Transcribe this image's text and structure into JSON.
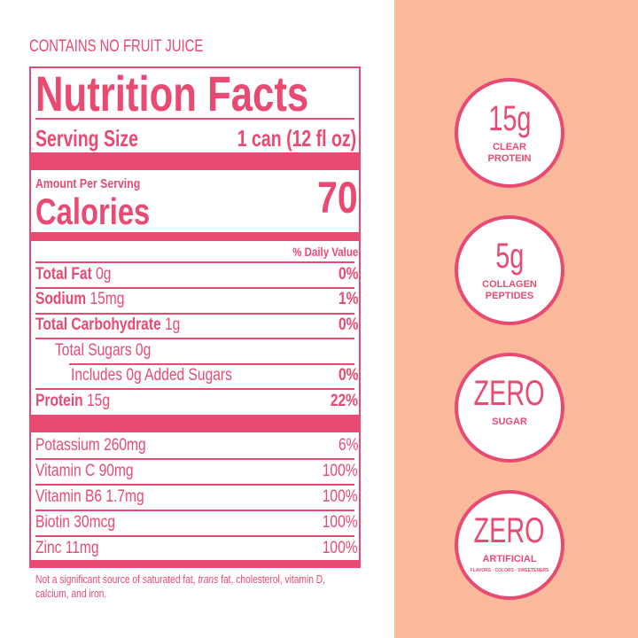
{
  "header": "CONTAINS NO FRUIT JUICE",
  "label": {
    "title": "Nutrition Facts",
    "serving_label": "Serving Size",
    "serving_value": "1 can (12 fl oz)",
    "amount_per_serving": "Amount Per Serving",
    "calories_label": "Calories",
    "calories_value": "70",
    "dv_header": "% Daily Value",
    "rows": [
      {
        "name": "Total Fat",
        "amount": "0g",
        "dv": "0%"
      },
      {
        "name": "Sodium",
        "amount": "15mg",
        "dv": "1%"
      },
      {
        "name": "Total Carbohydrate",
        "amount": "1g",
        "dv": "0%"
      },
      {
        "name": "Total Sugars 0g"
      },
      {
        "name": "Includes 0g Added Sugars",
        "dv": "0%"
      },
      {
        "name": "Protein",
        "amount": "15g",
        "dv": "22%"
      }
    ],
    "minerals": [
      {
        "name": "Potassium 260mg",
        "dv": "6%"
      },
      {
        "name": "Vitamin C 90mg",
        "dv": "100%"
      },
      {
        "name": "Vitamin B6 1.7mg",
        "dv": "100%"
      },
      {
        "name": "Biotin 30mcg",
        "dv": "100%"
      },
      {
        "name": "Zinc 11mg",
        "dv": "100%"
      }
    ],
    "footnote": {
      "before": "Not a significant source of saturated fat, ",
      "italic": "trans",
      "after": " fat, cholesterol, vitamin D, calcium, and iron."
    }
  },
  "badges": [
    {
      "big": "15g",
      "small": "CLEAR PROTEIN"
    },
    {
      "big": "5g",
      "small": "COLLAGEN PEPTIDES"
    },
    {
      "big": "ZERO",
      "small": "SUGAR"
    },
    {
      "big": "ZERO",
      "small": "ARTIFICIAL",
      "tiny": "FLAVORS · COLORS · SWEETENERS"
    }
  ]
}
